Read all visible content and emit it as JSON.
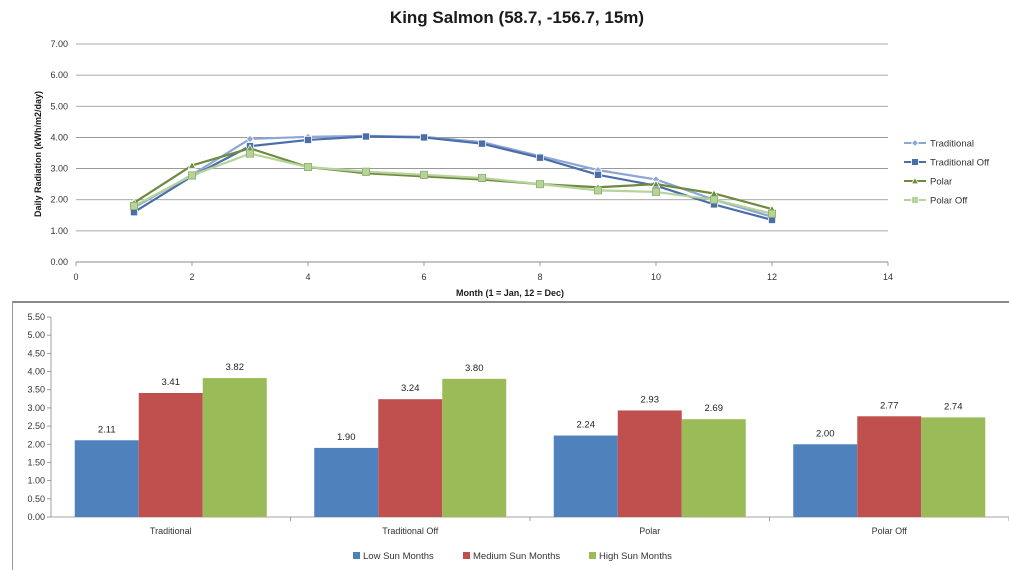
{
  "chart_data": [
    {
      "type": "line",
      "title": "King Salmon (58.7, -156.7, 15m)",
      "xlabel": "Month (1 = Jan, 12 = Dec)",
      "ylabel": "Daily Radiation (kWh/m2/day)",
      "xlim": [
        0,
        14
      ],
      "xticks": [
        "0",
        "2",
        "4",
        "6",
        "8",
        "10",
        "12",
        "14"
      ],
      "ylim": [
        0,
        7
      ],
      "yticks": [
        "0.00",
        "1.00",
        "2.00",
        "3.00",
        "4.00",
        "5.00",
        "6.00",
        "7.00"
      ],
      "grid": true,
      "legend_position": "right",
      "x": [
        1,
        2,
        3,
        4,
        5,
        6,
        7,
        8,
        9,
        10,
        11,
        12
      ],
      "series": [
        {
          "name": "Traditional",
          "color": "#8ea6d6",
          "marker": "diamond",
          "values": [
            1.75,
            2.8,
            3.95,
            4.02,
            4.05,
            4.02,
            3.85,
            3.4,
            2.95,
            2.65,
            2.0,
            1.45
          ]
        },
        {
          "name": "Traditional Off",
          "color": "#4a6fa8",
          "marker": "square",
          "values": [
            1.6,
            2.75,
            3.72,
            3.92,
            4.03,
            4.0,
            3.8,
            3.35,
            2.8,
            2.45,
            1.85,
            1.35
          ]
        },
        {
          "name": "Polar",
          "color": "#6e8a3e",
          "marker": "triangle",
          "values": [
            1.9,
            3.1,
            3.65,
            3.05,
            2.85,
            2.75,
            2.65,
            2.5,
            2.4,
            2.5,
            2.2,
            1.7
          ]
        },
        {
          "name": "Polar Off",
          "color": "#b5d39a",
          "marker": "square",
          "values": [
            1.8,
            2.78,
            3.48,
            3.05,
            2.9,
            2.8,
            2.7,
            2.5,
            2.3,
            2.25,
            2.0,
            1.55
          ]
        }
      ]
    },
    {
      "type": "bar",
      "categories": [
        "Traditional",
        "Traditional Off",
        "Polar",
        "Polar Off"
      ],
      "ylim": [
        0,
        5.5
      ],
      "yticks": [
        "0.00",
        "0.50",
        "1.00",
        "1.50",
        "2.00",
        "2.50",
        "3.00",
        "3.50",
        "4.00",
        "4.50",
        "5.00",
        "5.50"
      ],
      "legend_position": "bottom",
      "series": [
        {
          "name": "Low Sun Months",
          "color": "#4f81bd",
          "values": [
            2.11,
            1.9,
            2.24,
            2.0
          ],
          "labels": [
            "2.11",
            "1.90",
            "2.24",
            "2.00"
          ]
        },
        {
          "name": "Medium Sun Months",
          "color": "#c0504d",
          "values": [
            3.41,
            3.24,
            2.93,
            2.77
          ],
          "labels": [
            "3.41",
            "3.24",
            "2.93",
            "2.77"
          ]
        },
        {
          "name": "High Sun Months",
          "color": "#9bbb59",
          "values": [
            3.82,
            3.8,
            2.69,
            2.74
          ],
          "labels": [
            "3.82",
            "3.80",
            "2.69",
            "2.74"
          ]
        }
      ]
    }
  ]
}
